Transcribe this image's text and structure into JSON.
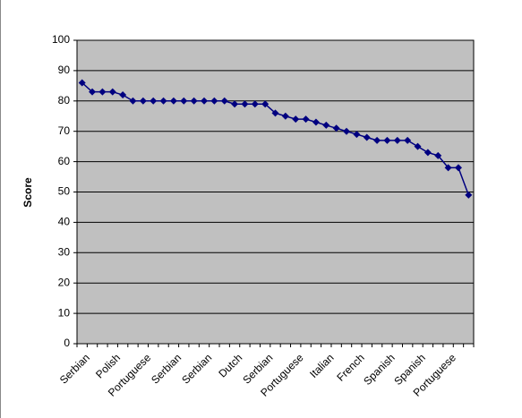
{
  "chart_data": {
    "type": "line",
    "y_label": "Score",
    "categories": [
      "Serbian",
      null,
      null,
      "Polish",
      null,
      null,
      "Portuguese",
      null,
      null,
      "Serbian",
      null,
      null,
      "Serbian",
      null,
      null,
      "Dutch",
      null,
      null,
      "Serbian",
      null,
      null,
      "Portuguese",
      null,
      null,
      "Italian",
      null,
      null,
      "French",
      null,
      null,
      "Spanish",
      null,
      null,
      "Spanish",
      null,
      null,
      "Portuguese",
      null,
      null
    ],
    "series": [
      {
        "color": "#000080",
        "values": [
          86,
          83,
          83,
          83,
          82,
          80,
          80,
          80,
          80,
          80,
          80,
          80,
          80,
          80,
          80,
          79,
          79,
          79,
          79,
          76,
          75,
          74,
          74,
          73,
          72,
          71,
          70,
          69,
          68,
          67,
          67,
          67,
          67,
          65,
          63,
          62,
          58,
          58,
          49
        ]
      }
    ],
    "ylim": [
      0,
      100
    ],
    "yticks": [
      0,
      10,
      20,
      30,
      40,
      50,
      60,
      70,
      80,
      90,
      100
    ],
    "grid": true,
    "plot_background": "#c0c0c0"
  }
}
